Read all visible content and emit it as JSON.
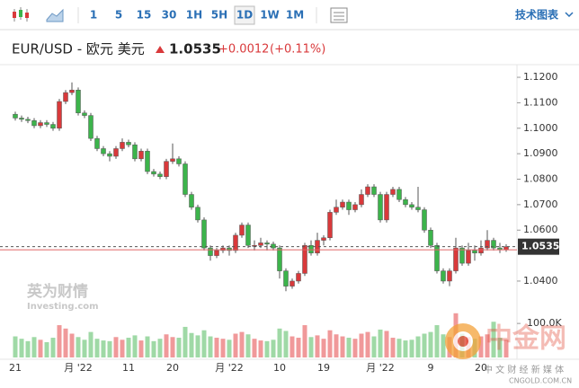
{
  "toolbar": {
    "intervals": [
      "1",
      "5",
      "15",
      "30",
      "1H",
      "5H",
      "1D",
      "1W",
      "1M"
    ],
    "active_index": 6,
    "tech_chart": "技术图表"
  },
  "header": {
    "symbol": "EUR/USD - 欧元 美元",
    "price": "1.0535",
    "change": "+0.0012",
    "change_pct": "(+0.11%)"
  },
  "watermark": {
    "brand": "英为财情",
    "brand_sub": "Investing.com",
    "site": "中金网",
    "site_sub": "中 文 财 经 新 媒 体",
    "site_url": "CNGOLD.COM.CN"
  },
  "chart_data": {
    "type": "candlestick",
    "up_color": "#d9393b",
    "down_color": "#3cb44b",
    "up_volume_color": "#f0999a",
    "down_volume_color": "#9fd9a6",
    "categories": [
      "21",
      null,
      null,
      null,
      null,
      null,
      null,
      null,
      null,
      null,
      "月 '22",
      null,
      null,
      null,
      null,
      null,
      null,
      null,
      "11",
      null,
      null,
      null,
      null,
      null,
      null,
      "20",
      null,
      null,
      null,
      null,
      null,
      null,
      null,
      null,
      "月 '22",
      null,
      null,
      null,
      null,
      null,
      null,
      null,
      "10",
      null,
      null,
      null,
      null,
      null,
      null,
      "19",
      null,
      null,
      null,
      null,
      null,
      null,
      null,
      null,
      "月 '22",
      null,
      null,
      null,
      null,
      null,
      null,
      null,
      "9",
      null,
      null,
      null,
      null,
      null,
      null,
      null,
      "20",
      null,
      null,
      null,
      null
    ],
    "open": [
      1.1055,
      1.104,
      1.1035,
      1.103,
      1.101,
      1.1022,
      1.1015,
      1.1,
      1.1105,
      1.114,
      1.115,
      1.106,
      1.105,
      1.096,
      1.092,
      1.09,
      1.089,
      1.092,
      1.0945,
      1.0935,
      1.088,
      1.091,
      1.083,
      1.082,
      1.081,
      1.087,
      1.088,
      1.086,
      1.074,
      1.069,
      1.064,
      1.053,
      1.05,
      1.052,
      1.053,
      1.052,
      1.058,
      1.062,
      1.054,
      1.054,
      1.055,
      1.0545,
      1.053,
      1.044,
      1.038,
      1.04,
      1.043,
      1.054,
      1.051,
      1.056,
      1.057,
      1.067,
      1.069,
      1.071,
      1.068,
      1.07,
      1.074,
      1.077,
      1.074,
      1.064,
      1.074,
      1.076,
      1.072,
      1.07,
      1.069,
      1.068,
      1.06,
      1.054,
      1.044,
      1.04,
      1.044,
      1.053,
      1.047,
      1.052,
      1.051,
      1.053,
      1.056,
      1.053,
      1.0523
    ],
    "high": [
      1.1065,
      1.105,
      1.1045,
      1.104,
      1.1032,
      1.1032,
      1.1025,
      1.1115,
      1.115,
      1.118,
      1.116,
      1.107,
      1.106,
      1.097,
      1.093,
      1.091,
      1.093,
      1.096,
      1.0955,
      1.0945,
      1.092,
      1.092,
      1.084,
      1.083,
      1.088,
      1.094,
      1.089,
      1.087,
      1.075,
      1.07,
      1.065,
      1.054,
      1.053,
      1.054,
      1.054,
      1.059,
      1.063,
      1.063,
      1.056,
      1.057,
      1.056,
      1.0555,
      1.054,
      1.045,
      1.041,
      1.044,
      1.055,
      1.056,
      1.059,
      1.058,
      1.068,
      1.072,
      1.072,
      1.072,
      1.071,
      1.076,
      1.078,
      1.078,
      1.075,
      1.075,
      1.077,
      1.077,
      1.073,
      1.071,
      1.077,
      1.069,
      1.061,
      1.055,
      1.045,
      1.045,
      1.057,
      1.054,
      1.055,
      1.054,
      1.056,
      1.06,
      1.057,
      1.055,
      1.0545
    ],
    "low": [
      1.103,
      1.1025,
      1.102,
      1.1,
      1.1,
      1.1005,
      1.099,
      1.099,
      1.1095,
      1.113,
      1.105,
      1.104,
      1.095,
      1.091,
      1.089,
      1.087,
      1.088,
      1.091,
      1.0925,
      1.087,
      1.087,
      1.082,
      1.081,
      1.08,
      1.08,
      1.086,
      1.085,
      1.073,
      1.068,
      1.063,
      1.052,
      1.048,
      1.049,
      1.051,
      1.05,
      1.051,
      1.057,
      1.053,
      1.052,
      1.053,
      1.052,
      1.052,
      1.041,
      1.036,
      1.037,
      1.039,
      1.042,
      1.05,
      1.05,
      1.054,
      1.056,
      1.066,
      1.068,
      1.066,
      1.067,
      1.069,
      1.073,
      1.073,
      1.063,
      1.063,
      1.073,
      1.071,
      1.069,
      1.068,
      1.067,
      1.059,
      1.053,
      1.043,
      1.039,
      1.038,
      1.043,
      1.046,
      1.046,
      1.048,
      1.05,
      1.052,
      1.052,
      1.051,
      1.0515
    ],
    "close": [
      1.104,
      1.1035,
      1.103,
      1.101,
      1.1022,
      1.1015,
      1.1,
      1.1105,
      1.114,
      1.115,
      1.106,
      1.105,
      1.096,
      1.092,
      1.09,
      1.089,
      1.092,
      1.0945,
      1.0935,
      1.088,
      1.091,
      1.083,
      1.082,
      1.081,
      1.087,
      1.088,
      1.086,
      1.074,
      1.069,
      1.064,
      1.053,
      1.05,
      1.052,
      1.053,
      1.052,
      1.058,
      1.062,
      1.054,
      1.054,
      1.055,
      1.0545,
      1.053,
      1.044,
      1.038,
      1.04,
      1.043,
      1.054,
      1.051,
      1.056,
      1.057,
      1.067,
      1.069,
      1.071,
      1.068,
      1.07,
      1.074,
      1.077,
      1.074,
      1.064,
      1.074,
      1.076,
      1.072,
      1.07,
      1.069,
      1.068,
      1.06,
      1.054,
      1.044,
      1.04,
      1.044,
      1.053,
      1.047,
      1.052,
      1.051,
      1.053,
      1.056,
      1.053,
      1.0523,
      1.0535
    ],
    "volume": [
      62000,
      55000,
      48000,
      60000,
      52000,
      45000,
      58000,
      95000,
      85000,
      70000,
      60000,
      52000,
      75000,
      55000,
      50000,
      48000,
      60000,
      52000,
      58000,
      65000,
      50000,
      62000,
      48000,
      55000,
      68000,
      60000,
      58000,
      90000,
      72000,
      65000,
      80000,
      62000,
      58000,
      55000,
      52000,
      70000,
      75000,
      68000,
      55000,
      50000,
      48000,
      52000,
      85000,
      78000,
      62000,
      58000,
      95000,
      60000,
      65000,
      55000,
      80000,
      68000,
      62000,
      58000,
      55000,
      70000,
      75000,
      62000,
      82000,
      78000,
      58000,
      55000,
      50000,
      52000,
      62000,
      70000,
      75000,
      95000,
      68000,
      60000,
      130000,
      70000,
      60000,
      55000,
      62000,
      68000,
      105000,
      58000,
      52000
    ],
    "reference_line": 1.0523,
    "ylim": [
      1.0287,
      1.1239
    ],
    "yticks": [
      {
        "value": 1.12,
        "label": "1.1200"
      },
      {
        "value": 1.11,
        "label": "1.1100"
      },
      {
        "value": 1.1,
        "label": "1.1000"
      },
      {
        "value": 1.09,
        "label": "1.0900"
      },
      {
        "value": 1.08,
        "label": "1.0800"
      },
      {
        "value": 1.07,
        "label": "1.0700"
      },
      {
        "value": 1.06,
        "label": "1.0600"
      },
      {
        "value": 1.04,
        "label": "1.0400"
      }
    ],
    "vlim": [
      0,
      140000
    ],
    "vticks": [
      {
        "value": 100000,
        "label": "100.0K"
      }
    ]
  }
}
